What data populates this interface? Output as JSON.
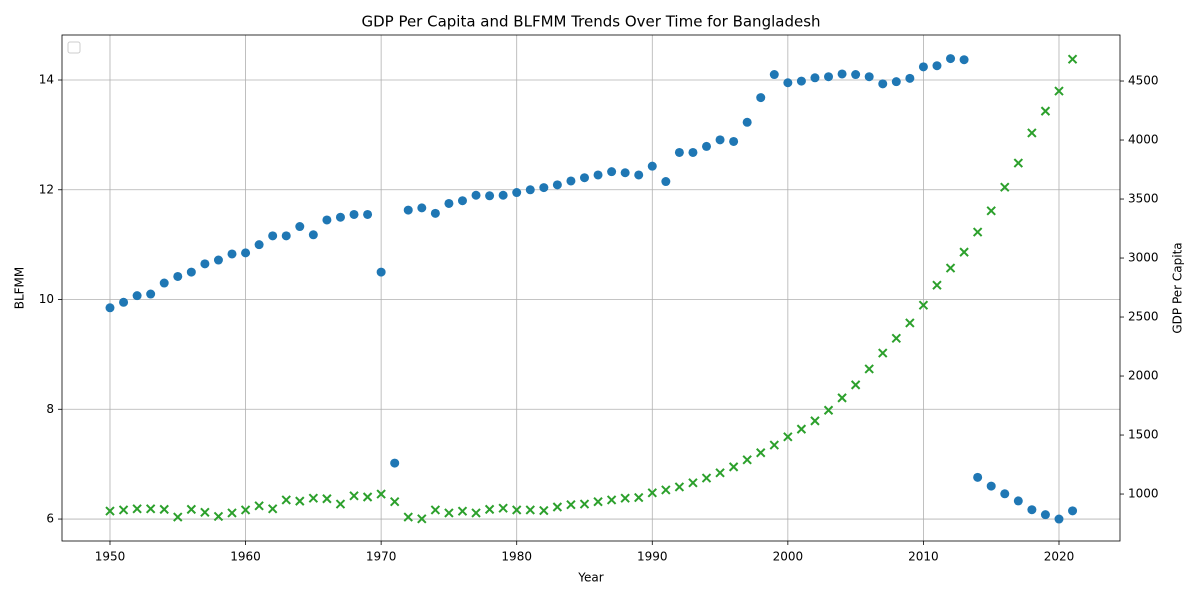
{
  "chart_data": {
    "type": "scatter",
    "title": "GDP Per Capita and BLFMM Trends Over Time for Bangladesh",
    "xlabel": "Year",
    "ylabel": "BLFMM",
    "y2label": "GDP Per Capita",
    "x": [
      1950,
      1951,
      1952,
      1953,
      1954,
      1955,
      1956,
      1957,
      1958,
      1959,
      1960,
      1961,
      1962,
      1963,
      1964,
      1965,
      1966,
      1967,
      1968,
      1969,
      1970,
      1971,
      1972,
      1973,
      1974,
      1975,
      1976,
      1977,
      1978,
      1979,
      1980,
      1981,
      1982,
      1983,
      1984,
      1985,
      1986,
      1987,
      1988,
      1989,
      1990,
      1991,
      1992,
      1993,
      1994,
      1995,
      1996,
      1997,
      1998,
      1999,
      2000,
      2001,
      2002,
      2003,
      2004,
      2005,
      2006,
      2007,
      2008,
      2009,
      2010,
      2011,
      2012,
      2013,
      2014,
      2015,
      2016,
      2017,
      2018,
      2019,
      2020,
      2021
    ],
    "series": [
      {
        "color": "#1f77b4",
        "marker": "o",
        "values": [
          9.85,
          9.95,
          10.07,
          10.1,
          10.3,
          10.42,
          10.5,
          10.65,
          10.72,
          10.83,
          10.85,
          11.0,
          11.16,
          11.16,
          11.33,
          11.18,
          11.45,
          11.5,
          11.55,
          11.55,
          10.5,
          7.02,
          11.63,
          11.67,
          11.57,
          11.75,
          11.8,
          11.9,
          11.89,
          11.9,
          11.95,
          12.0,
          12.04,
          12.09,
          12.16,
          12.22,
          12.27,
          12.33,
          12.31,
          12.27,
          12.43,
          12.15,
          12.68,
          12.68,
          12.79,
          12.91,
          12.88,
          13.23,
          13.68,
          14.1,
          13.95,
          13.98,
          14.04,
          14.06,
          14.11,
          14.1,
          14.06,
          13.93,
          13.97,
          14.03,
          14.24,
          14.26,
          14.39,
          14.37,
          6.76,
          6.6,
          6.46,
          6.33,
          6.17,
          6.08,
          6.0,
          6.15
        ]
      },
      {
        "color": "#2ca02c",
        "marker": "x",
        "axis": "y2",
        "values": [
          856,
          865,
          875,
          875,
          870,
          805,
          870,
          845,
          810,
          840,
          865,
          900,
          875,
          950,
          940,
          965,
          960,
          915,
          985,
          975,
          1000,
          935,
          805,
          790,
          865,
          840,
          855,
          840,
          870,
          880,
          865,
          865,
          860,
          890,
          910,
          915,
          935,
          950,
          965,
          970,
          1010,
          1035,
          1060,
          1095,
          1135,
          1180,
          1230,
          1290,
          1350,
          1415,
          1485,
          1550,
          1620,
          1710,
          1815,
          1925,
          2060,
          2195,
          2320,
          2450,
          2600,
          2770,
          2915,
          3050,
          3220,
          3400,
          3600,
          3805,
          4060,
          4245,
          4415,
          4685
        ]
      }
    ],
    "xlim": [
      1946.46,
      2024.5
    ],
    "xticks": [
      1950,
      1960,
      1970,
      1980,
      1990,
      2000,
      2010,
      2020
    ],
    "ylim": [
      5.6,
      14.82
    ],
    "yticks": [
      6,
      8,
      10,
      12,
      14
    ],
    "y2lim": [
      602,
      4890
    ],
    "y2ticks": [
      1000,
      1500,
      2000,
      2500,
      3000,
      3500,
      4000,
      4500
    ],
    "grid": true
  }
}
